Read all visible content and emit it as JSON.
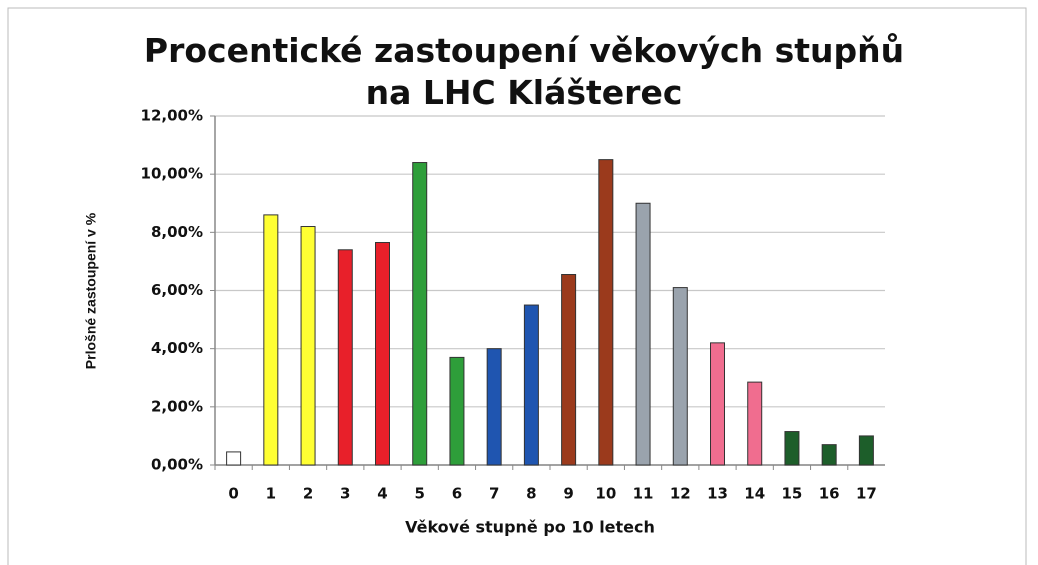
{
  "chart_data": {
    "type": "bar",
    "title": "Procentické zastoupení věkových stupňů na LHC Klášterec",
    "x_label": "Věkové stupně po 10 letech",
    "y_label": "Prlošné zastoupení v %",
    "categories": [
      "0",
      "1",
      "2",
      "3",
      "4",
      "5",
      "6",
      "7",
      "8",
      "9",
      "10",
      "11",
      "12",
      "13",
      "14",
      "15",
      "16",
      "17"
    ],
    "values": [
      0.45,
      8.6,
      8.2,
      7.4,
      7.65,
      10.4,
      3.7,
      4.0,
      5.5,
      6.55,
      10.5,
      9.0,
      6.1,
      4.2,
      2.85,
      1.15,
      0.7,
      1.0
    ],
    "colors": [
      "#ffffff",
      "#ffff33",
      "#ffff33",
      "#e8202a",
      "#e8202a",
      "#2e9e3a",
      "#2e9e3a",
      "#1f55b0",
      "#1f55b0",
      "#9b3a1c",
      "#9b3a1c",
      "#9aa3ad",
      "#9aa3ad",
      "#f06d8f",
      "#f06d8f",
      "#1d5e2a",
      "#1d5e2a",
      "#1d5e2a"
    ],
    "ylim": [
      0,
      12
    ],
    "yticks": [
      {
        "value": 0,
        "label": "0,00%"
      },
      {
        "value": 2,
        "label": "2,00%"
      },
      {
        "value": 4,
        "label": "4,00%"
      },
      {
        "value": 6,
        "label": "6,00%"
      },
      {
        "value": 8,
        "label": "8,00%"
      },
      {
        "value": 10,
        "label": "10,00%"
      },
      {
        "value": 12,
        "label": "12,00%"
      }
    ],
    "grid": true
  }
}
